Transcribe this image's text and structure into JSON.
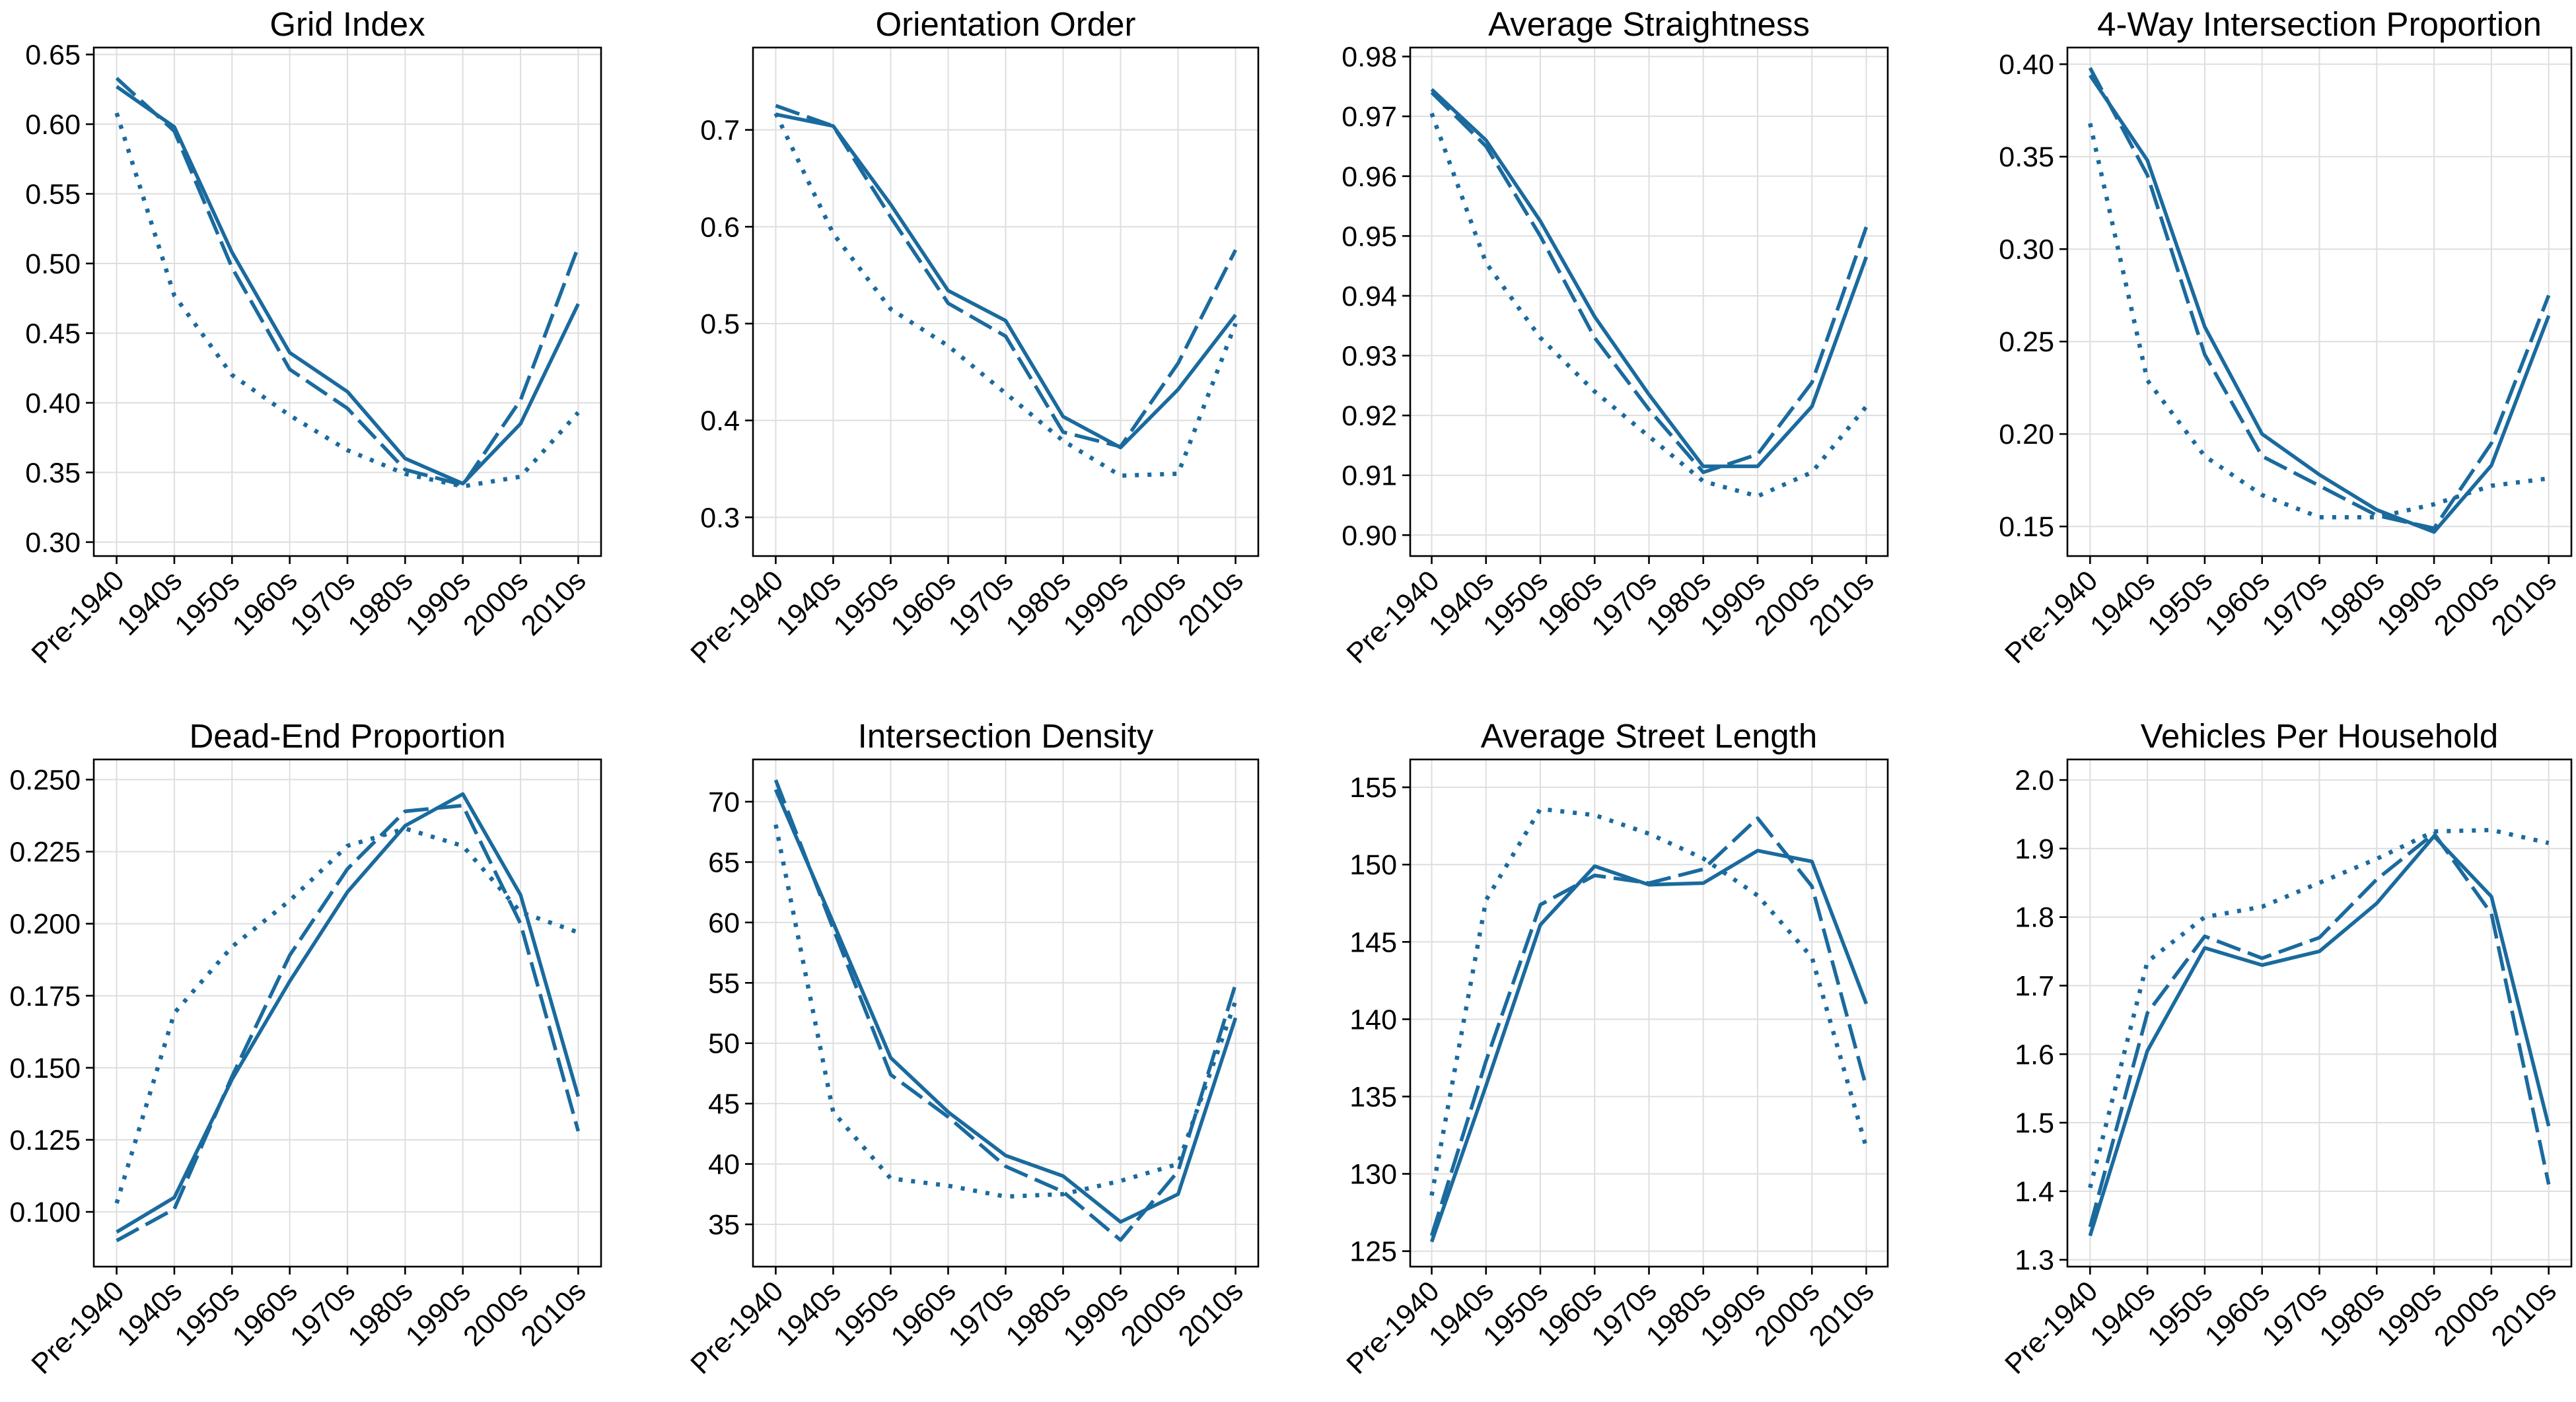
{
  "figure": {
    "line_color": "#1a6a9e",
    "categories": [
      "Pre-1940",
      "1940s",
      "1950s",
      "1960s",
      "1970s",
      "1980s",
      "1990s",
      "2000s",
      "2010s"
    ]
  },
  "chart_data": [
    {
      "type": "line",
      "title": "Grid Index",
      "ylim": [
        0.29,
        0.655
      ],
      "yticks": [
        0.3,
        0.35,
        0.4,
        0.45,
        0.5,
        0.55,
        0.6,
        0.65
      ],
      "ytick_labels": [
        "0.30",
        "0.35",
        "0.40",
        "0.45",
        "0.50",
        "0.55",
        "0.60",
        "0.65"
      ],
      "series": [
        {
          "style": "solid",
          "values": [
            0.627,
            0.598,
            0.508,
            0.436,
            0.408,
            0.36,
            0.342,
            0.385,
            0.471
          ]
        },
        {
          "style": "dashed",
          "values": [
            0.633,
            0.595,
            0.497,
            0.424,
            0.396,
            0.352,
            0.341,
            0.402,
            0.512
          ]
        },
        {
          "style": "dotted",
          "values": [
            0.608,
            0.477,
            0.42,
            0.391,
            0.366,
            0.349,
            0.34,
            0.347,
            0.393
          ]
        }
      ]
    },
    {
      "type": "line",
      "title": "Orientation Order",
      "ylim": [
        0.26,
        0.785
      ],
      "yticks": [
        0.3,
        0.4,
        0.5,
        0.6,
        0.7
      ],
      "ytick_labels": [
        "0.3",
        "0.4",
        "0.5",
        "0.6",
        "0.7"
      ],
      "series": [
        {
          "style": "solid",
          "values": [
            0.716,
            0.704,
            0.623,
            0.534,
            0.503,
            0.404,
            0.372,
            0.432,
            0.509
          ]
        },
        {
          "style": "dashed",
          "values": [
            0.725,
            0.704,
            0.61,
            0.521,
            0.487,
            0.388,
            0.373,
            0.459,
            0.576
          ]
        },
        {
          "style": "dotted",
          "values": [
            0.717,
            0.593,
            0.515,
            0.477,
            0.428,
            0.379,
            0.343,
            0.345,
            0.5
          ]
        }
      ]
    },
    {
      "type": "line",
      "title": "Average Straightness",
      "ylim": [
        0.8965,
        0.9815
      ],
      "yticks": [
        0.9,
        0.91,
        0.92,
        0.93,
        0.94,
        0.95,
        0.96,
        0.97,
        0.98
      ],
      "ytick_labels": [
        "0.90",
        "0.91",
        "0.92",
        "0.93",
        "0.94",
        "0.95",
        "0.96",
        "0.97",
        "0.98"
      ],
      "series": [
        {
          "style": "solid",
          "values": [
            0.9745,
            0.966,
            0.9525,
            0.9365,
            0.9235,
            0.9115,
            0.9115,
            0.9215,
            0.9465
          ]
        },
        {
          "style": "dashed",
          "values": [
            0.974,
            0.965,
            0.95,
            0.933,
            0.921,
            0.9105,
            0.9135,
            0.9255,
            0.9515
          ]
        },
        {
          "style": "dotted",
          "values": [
            0.9705,
            0.9455,
            0.933,
            0.924,
            0.9165,
            0.909,
            0.9065,
            0.9105,
            0.9215
          ]
        }
      ]
    },
    {
      "type": "line",
      "title": "4-Way Intersection Proportion",
      "ylim": [
        0.134,
        0.409
      ],
      "yticks": [
        0.15,
        0.2,
        0.25,
        0.3,
        0.35,
        0.4
      ],
      "ytick_labels": [
        "0.15",
        "0.20",
        "0.25",
        "0.30",
        "0.35",
        "0.40"
      ],
      "series": [
        {
          "style": "solid",
          "values": [
            0.394,
            0.348,
            0.258,
            0.2,
            0.178,
            0.159,
            0.147,
            0.183,
            0.264
          ]
        },
        {
          "style": "dashed",
          "values": [
            0.398,
            0.34,
            0.243,
            0.188,
            0.172,
            0.156,
            0.149,
            0.195,
            0.275
          ]
        },
        {
          "style": "dotted",
          "values": [
            0.368,
            0.229,
            0.188,
            0.167,
            0.155,
            0.155,
            0.162,
            0.172,
            0.176
          ]
        }
      ]
    },
    {
      "type": "line",
      "title": "Dead-End Proportion",
      "ylim": [
        0.081,
        0.257
      ],
      "yticks": [
        0.1,
        0.125,
        0.15,
        0.175,
        0.2,
        0.225,
        0.25
      ],
      "ytick_labels": [
        "0.100",
        "0.125",
        "0.150",
        "0.175",
        "0.200",
        "0.225",
        "0.250"
      ],
      "series": [
        {
          "style": "solid",
          "values": [
            0.093,
            0.105,
            0.146,
            0.18,
            0.211,
            0.234,
            0.245,
            0.21,
            0.14
          ]
        },
        {
          "style": "dashed",
          "values": [
            0.09,
            0.101,
            0.147,
            0.189,
            0.219,
            0.239,
            0.241,
            0.2,
            0.128
          ]
        },
        {
          "style": "dotted",
          "values": [
            0.103,
            0.169,
            0.192,
            0.208,
            0.227,
            0.233,
            0.227,
            0.204,
            0.197
          ]
        }
      ]
    },
    {
      "type": "line",
      "title": "Intersection Density",
      "ylim": [
        31.5,
        73.5
      ],
      "yticks": [
        35,
        40,
        45,
        50,
        55,
        60,
        65,
        70
      ],
      "ytick_labels": [
        "35",
        "40",
        "45",
        "50",
        "55",
        "60",
        "65",
        "70"
      ],
      "series": [
        {
          "style": "solid",
          "values": [
            71.0,
            60.0,
            48.8,
            44.3,
            40.7,
            39.0,
            35.2,
            37.5,
            52.1
          ]
        },
        {
          "style": "dashed",
          "values": [
            71.8,
            59.5,
            47.4,
            43.9,
            39.8,
            37.7,
            33.7,
            39.4,
            54.9
          ]
        },
        {
          "style": "dotted",
          "values": [
            68.1,
            44.3,
            38.8,
            38.2,
            37.3,
            37.5,
            38.6,
            40.0,
            53.5
          ]
        }
      ]
    },
    {
      "type": "line",
      "title": "Average Street Length",
      "ylim": [
        124.0,
        156.8
      ],
      "yticks": [
        125,
        130,
        135,
        140,
        145,
        150,
        155
      ],
      "ytick_labels": [
        "125",
        "130",
        "135",
        "140",
        "145",
        "150",
        "155"
      ],
      "series": [
        {
          "style": "solid",
          "values": [
            125.6,
            135.7,
            146.1,
            149.9,
            148.7,
            148.8,
            150.9,
            150.2,
            141.0
          ]
        },
        {
          "style": "dashed",
          "values": [
            126.0,
            137.3,
            147.4,
            149.3,
            148.8,
            149.7,
            153.0,
            148.6,
            135.6
          ]
        },
        {
          "style": "dotted",
          "values": [
            128.6,
            147.7,
            153.6,
            153.2,
            152.0,
            150.4,
            148.0,
            144.0,
            131.7
          ]
        }
      ]
    },
    {
      "type": "line",
      "title": "Vehicles Per Household",
      "ylim": [
        1.29,
        2.03
      ],
      "yticks": [
        1.3,
        1.4,
        1.5,
        1.6,
        1.7,
        1.8,
        1.9,
        2.0
      ],
      "ytick_labels": [
        "1.3",
        "1.4",
        "1.5",
        "1.6",
        "1.7",
        "1.8",
        "1.9",
        "2.0"
      ],
      "series": [
        {
          "style": "solid",
          "values": [
            1.335,
            1.605,
            1.755,
            1.73,
            1.75,
            1.82,
            1.918,
            1.83,
            1.495
          ]
        },
        {
          "style": "dashed",
          "values": [
            1.348,
            1.66,
            1.772,
            1.74,
            1.77,
            1.855,
            1.922,
            1.805,
            1.41
          ]
        },
        {
          "style": "dotted",
          "values": [
            1.405,
            1.735,
            1.8,
            1.815,
            1.85,
            1.885,
            1.925,
            1.927,
            1.908
          ]
        }
      ]
    }
  ]
}
